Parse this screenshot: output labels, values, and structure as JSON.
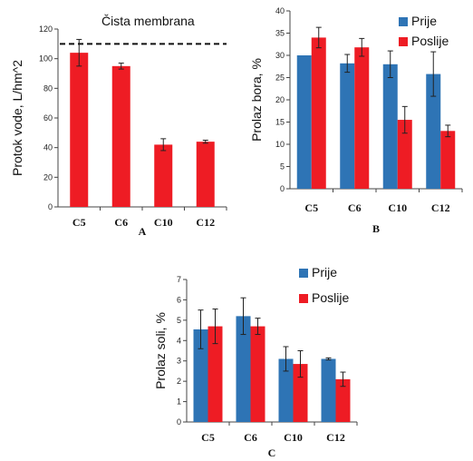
{
  "colors": {
    "prije": "#2e74b5",
    "poslije": "#ee1c24"
  },
  "chart_data": [
    {
      "id": "A",
      "type": "bar",
      "panel_label": "A",
      "categories": [
        "C5",
        "C6",
        "C10",
        "C12"
      ],
      "ylabel": "Protok vode, L/hm^2",
      "ylim": [
        0,
        120
      ],
      "yticks": [
        0,
        20,
        40,
        60,
        80,
        100,
        120
      ],
      "series": [
        {
          "values": [
            104,
            95,
            42,
            44
          ],
          "errors": [
            9,
            2,
            4,
            1
          ],
          "color": "#ee1c24"
        }
      ],
      "reference_line": {
        "value": 110,
        "label": "Čista membrana",
        "style": "dashed"
      }
    },
    {
      "id": "B",
      "type": "bar",
      "panel_label": "B",
      "categories": [
        "C5",
        "C6",
        "C10",
        "C12"
      ],
      "ylabel": "Prolaz bora, %",
      "ylim": [
        0,
        40
      ],
      "yticks": [
        0,
        5,
        10,
        15,
        20,
        25,
        30,
        35,
        40
      ],
      "legend_position": "top-right",
      "series": [
        {
          "name": "Prije",
          "values": [
            30,
            28.2,
            28,
            25.8
          ],
          "errors": [
            0,
            2,
            3,
            5
          ],
          "color": "#2e74b5"
        },
        {
          "name": "Poslije",
          "values": [
            34,
            31.8,
            15.5,
            13
          ],
          "errors": [
            2.3,
            2,
            3,
            1.3
          ],
          "color": "#ee1c24"
        }
      ]
    },
    {
      "id": "C",
      "type": "bar",
      "panel_label": "C",
      "categories": [
        "C5",
        "C6",
        "C10",
        "C12"
      ],
      "ylabel": "Prolaz soli, %",
      "ylim": [
        0,
        7
      ],
      "yticks": [
        0,
        1,
        2,
        3,
        4,
        5,
        6,
        7
      ],
      "legend_position": "top-right",
      "series": [
        {
          "name": "Prije",
          "values": [
            4.55,
            5.2,
            3.1,
            3.1
          ],
          "errors": [
            0.95,
            0.9,
            0.6,
            0.05
          ],
          "color": "#2e74b5"
        },
        {
          "name": "Poslije",
          "values": [
            4.7,
            4.7,
            2.85,
            2.1
          ],
          "errors": [
            0.85,
            0.4,
            0.65,
            0.35
          ],
          "color": "#ee1c24"
        }
      ]
    }
  ]
}
